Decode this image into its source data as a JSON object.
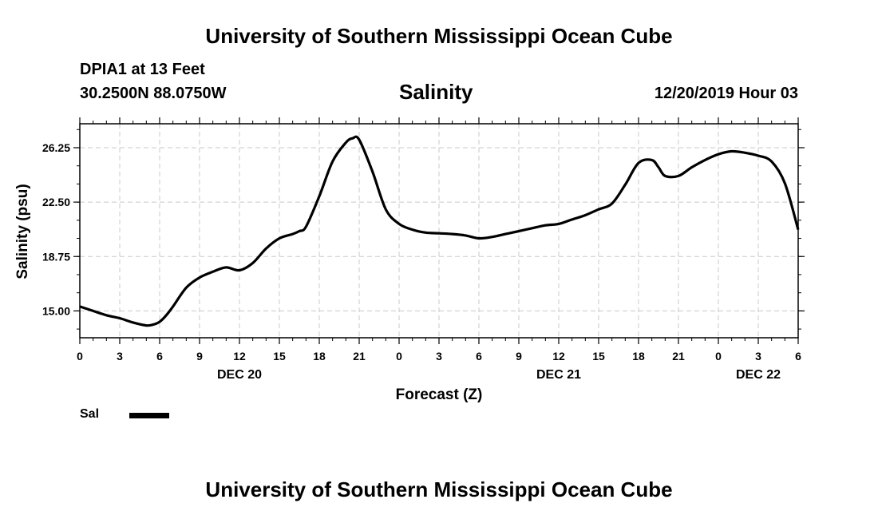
{
  "header": {
    "title": "University of Southern Mississippi Ocean Cube",
    "station": "DPIA1 at 13 Feet",
    "coordinates": "30.2500N 88.0750W",
    "parameter": "Salinity",
    "run_time": "12/20/2019 Hour 03"
  },
  "footer": {
    "title": "University of Southern Mississippi Ocean Cube"
  },
  "legend": {
    "label": "Sal",
    "color": "#000000"
  },
  "chart_data": {
    "type": "line",
    "title": "Salinity",
    "xlabel": "Forecast (Z)",
    "ylabel": "Salinity (psu)",
    "xlim": [
      0,
      54
    ],
    "ylim": [
      13.15,
      27.9
    ],
    "x_ticks": [
      0,
      3,
      6,
      9,
      12,
      15,
      18,
      21,
      24,
      27,
      30,
      33,
      36,
      39,
      42,
      45,
      48,
      51,
      54
    ],
    "x_tick_labels": [
      "0",
      "3",
      "6",
      "9",
      "12",
      "15",
      "18",
      "21",
      "0",
      "3",
      "6",
      "9",
      "12",
      "15",
      "18",
      "21",
      "0",
      "3",
      "6"
    ],
    "day_labels": [
      {
        "x": 12,
        "label": "DEC 20"
      },
      {
        "x": 36,
        "label": "DEC 21"
      },
      {
        "x": 51,
        "label": "DEC 22"
      }
    ],
    "y_ticks": [
      15.0,
      18.75,
      22.5,
      26.25
    ],
    "y_tick_labels": [
      "15.00",
      "18.75",
      "22.50",
      "26.25"
    ],
    "grid": true,
    "series": [
      {
        "name": "Sal",
        "color": "#000000",
        "x": [
          0,
          1,
          2,
          3,
          4,
          5,
          5.5,
          6,
          6.5,
          7,
          8,
          9,
          10,
          11,
          12,
          13,
          14,
          15,
          16,
          16.5,
          17,
          18,
          19,
          20,
          20.5,
          21,
          22,
          23,
          24,
          25,
          26,
          27,
          28,
          29,
          30,
          31,
          32,
          33,
          34,
          35,
          36,
          37,
          38,
          39,
          40,
          41,
          42,
          43,
          43.5,
          44,
          45,
          46,
          47,
          48,
          49,
          50,
          51,
          52,
          53,
          54
        ],
        "y": [
          15.3,
          15.0,
          14.7,
          14.5,
          14.2,
          14.0,
          14.05,
          14.25,
          14.7,
          15.3,
          16.6,
          17.3,
          17.7,
          18.0,
          17.8,
          18.3,
          19.3,
          20.0,
          20.3,
          20.5,
          20.8,
          22.9,
          25.3,
          26.6,
          26.9,
          26.8,
          24.6,
          22.0,
          21.0,
          20.6,
          20.4,
          20.35,
          20.3,
          20.2,
          20.0,
          20.1,
          20.3,
          20.5,
          20.7,
          20.9,
          21.0,
          21.3,
          21.6,
          22.0,
          22.4,
          23.7,
          25.2,
          25.4,
          24.9,
          24.3,
          24.3,
          24.9,
          25.4,
          25.8,
          26.0,
          25.9,
          25.7,
          25.3,
          23.8,
          20.6
        ]
      }
    ]
  }
}
